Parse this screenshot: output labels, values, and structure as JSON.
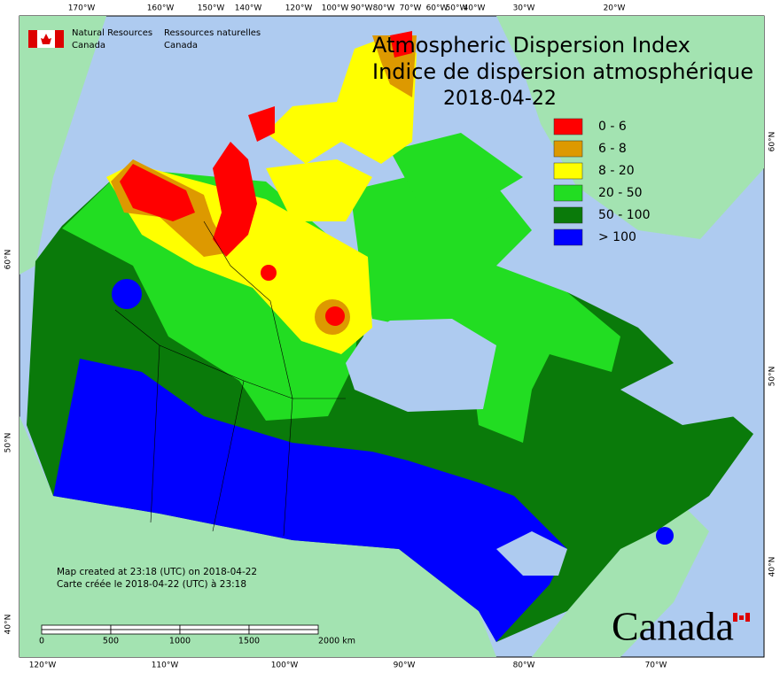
{
  "header": {
    "agency_en": [
      "Natural Resources",
      "Canada"
    ],
    "agency_fr": [
      "Ressources naturelles",
      "Canada"
    ]
  },
  "title": {
    "line1": "Atmospheric Dispersion Index",
    "line2": "Indice de dispersion atmosphérique",
    "date": "2018-04-22"
  },
  "legend": [
    {
      "label": "0 - 6",
      "color": "#ff0000"
    },
    {
      "label": "6 - 8",
      "color": "#dd9900"
    },
    {
      "label": "8 - 20",
      "color": "#ffff00"
    },
    {
      "label": "20 - 50",
      "color": "#22dd22"
    },
    {
      "label": "50 - 100",
      "color": "#0a7a0a"
    },
    {
      "label": "> 100",
      "color": "#0000ff"
    }
  ],
  "graticule": {
    "top": [
      "170°W",
      "160°W",
      "150°W",
      "140°W",
      "120°W",
      "100°W",
      "90°W",
      "80°W",
      "70°W",
      "60°W",
      "50°W",
      "40°W",
      "30°W",
      "20°W"
    ],
    "bottom": [
      "120°W",
      "110°W",
      "100°W",
      "90°W",
      "80°W",
      "70°W"
    ],
    "left": [
      "60°N",
      "50°N",
      "40°N"
    ],
    "right": [
      "60°N",
      "50°N",
      "40°N"
    ]
  },
  "footer": {
    "created_en": "Map created at 23:18 (UTC) on 2018-04-22",
    "created_fr": "Carte créée le 2018-04-22 (UTC) à 23:18"
  },
  "scale_bar": [
    "0",
    "500",
    "1000",
    "1500",
    "2000 km"
  ],
  "wordmark": "Canada"
}
